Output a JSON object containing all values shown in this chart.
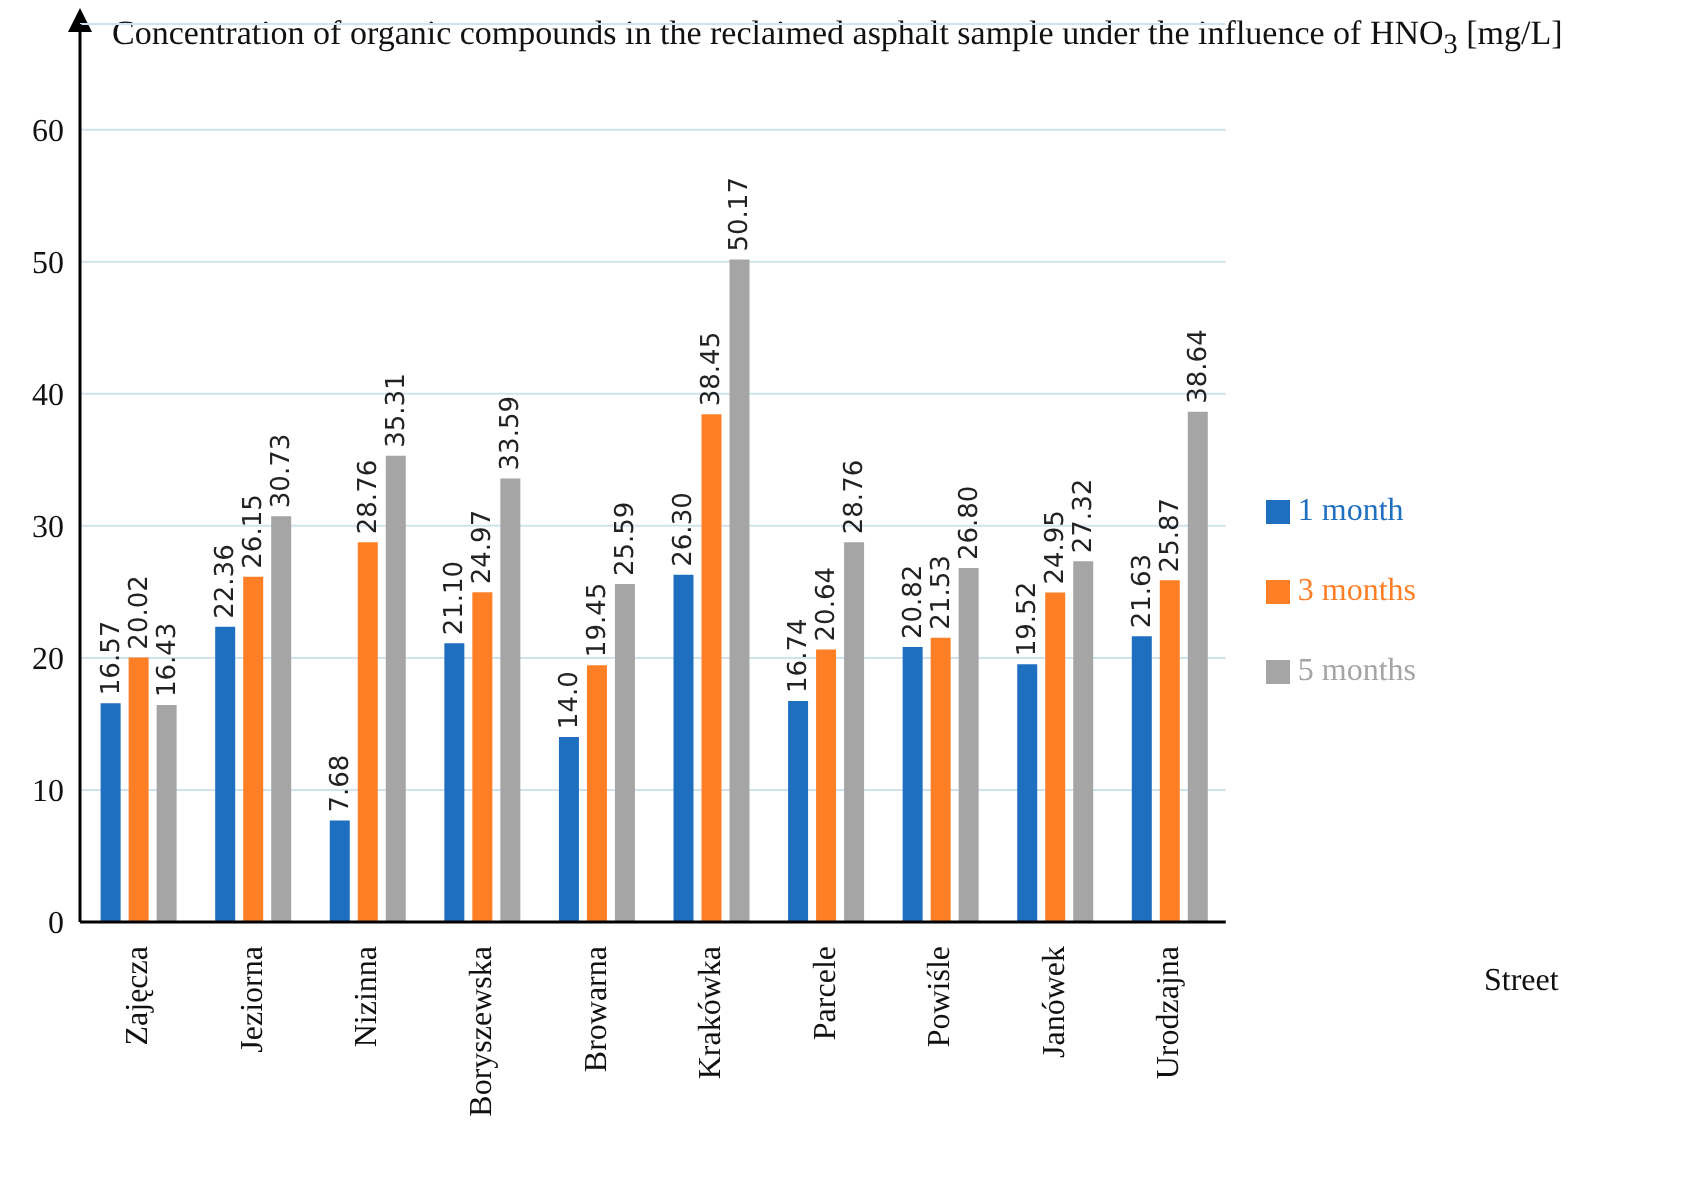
{
  "chart_data": {
    "type": "bar",
    "title": "Concentration of organic compounds in the reclaimed asphalt sample under the influence of HNO$_{3}$ [mg/L]",
    "annotations": [
      "Street"
    ],
    "categories": [
      "Zajęcza",
      "Jeziorna",
      "Nizinna",
      "Boryszewska",
      "Browarna",
      "Krakówka",
      "Parcele",
      "Powiśle",
      "Janówek",
      "Urodzajna"
    ],
    "series": [
      {
        "name": "1 month",
        "color": "#1f6fc0",
        "values": [
          16.57,
          22.36,
          7.68,
          21.1,
          14.0,
          26.3,
          16.74,
          20.82,
          19.52,
          21.63
        ],
        "value_labels": [
          "16.57",
          "22.36",
          "7.68",
          "21.10",
          "14.0",
          "26.30",
          "16.74",
          "20.82",
          "19.52",
          "21.63"
        ]
      },
      {
        "name": "3 months",
        "color": "#ff7f27",
        "values": [
          20.02,
          26.15,
          28.76,
          24.97,
          19.45,
          38.45,
          20.64,
          21.53,
          24.95,
          25.87
        ],
        "value_labels": [
          "20.02",
          "26.15",
          "28.76",
          "24.97",
          "19.45",
          "38.45",
          "20.64",
          "21.53",
          "24.95",
          "25.87"
        ]
      },
      {
        "name": "5 months",
        "color": "#a5a5a5",
        "values": [
          16.43,
          30.73,
          35.31,
          33.59,
          25.59,
          50.17,
          28.76,
          26.8,
          27.32,
          38.64
        ],
        "value_labels": [
          "16.43",
          "30.73",
          "35.31",
          "33.59",
          "25.59",
          "50.17",
          "28.76",
          "26.80",
          "27.32",
          "38.64"
        ]
      }
    ],
    "ylim": [
      0,
      68
    ],
    "yticks": [
      0,
      10,
      20,
      30,
      40,
      50,
      60
    ],
    "grid": "y",
    "legend": "right"
  }
}
